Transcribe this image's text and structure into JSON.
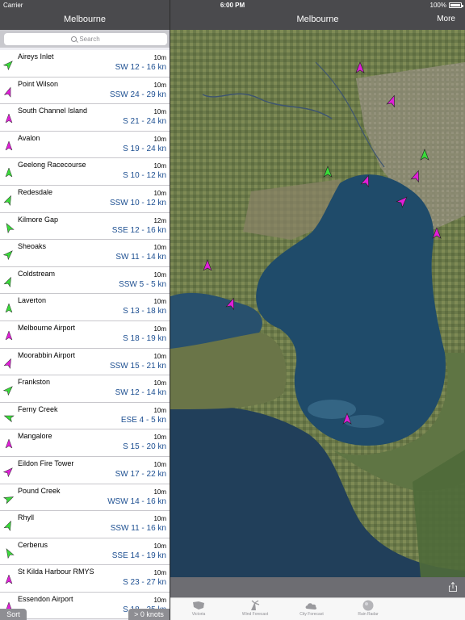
{
  "status": {
    "carrier": "Carrier",
    "time": "6:00 PM",
    "battery": "100%"
  },
  "left": {
    "title": "Melbourne",
    "search_placeholder": "Search",
    "stations": [
      {
        "name": "Aireys Inlet",
        "height": "10m",
        "wind": "SW 12 - 16 kn",
        "color": "green",
        "rot": 225
      },
      {
        "name": "Point Wilson",
        "height": "10m",
        "wind": "SSW 24 - 29 kn",
        "color": "magenta",
        "rot": 200
      },
      {
        "name": "South Channel Island",
        "height": "10m",
        "wind": "S 21 - 24 kn",
        "color": "magenta",
        "rot": 180
      },
      {
        "name": "Avalon",
        "height": "10m",
        "wind": "S 19 - 24 kn",
        "color": "magenta",
        "rot": 180
      },
      {
        "name": "Geelong Racecourse",
        "height": "10m",
        "wind": "S 10 - 12 kn",
        "color": "green",
        "rot": 180
      },
      {
        "name": "Redesdale",
        "height": "10m",
        "wind": "SSW 10 - 12 kn",
        "color": "green",
        "rot": 205
      },
      {
        "name": "Kilmore Gap",
        "height": "12m",
        "wind": "SSE 12 - 16 kn",
        "color": "green",
        "rot": 150
      },
      {
        "name": "Sheoaks",
        "height": "10m",
        "wind": "SW 11 - 14 kn",
        "color": "green",
        "rot": 225
      },
      {
        "name": "Coldstream",
        "height": "10m",
        "wind": "SSW 5 - 5 kn",
        "color": "green",
        "rot": 205
      },
      {
        "name": "Laverton",
        "height": "10m",
        "wind": "S 13 - 18 kn",
        "color": "green",
        "rot": 180
      },
      {
        "name": "Melbourne Airport",
        "height": "10m",
        "wind": "S 18 - 19 kn",
        "color": "magenta",
        "rot": 180
      },
      {
        "name": "Moorabbin Airport",
        "height": "10m",
        "wind": "SSW 15 - 21 kn",
        "color": "magenta",
        "rot": 205
      },
      {
        "name": "Frankston",
        "height": "10m",
        "wind": "SW 12 - 14 kn",
        "color": "green",
        "rot": 225
      },
      {
        "name": "Ferny Creek",
        "height": "10m",
        "wind": "ESE 4 - 5 kn",
        "color": "green",
        "rot": 110
      },
      {
        "name": "Mangalore",
        "height": "10m",
        "wind": "S 15 - 20 kn",
        "color": "magenta",
        "rot": 180
      },
      {
        "name": "Eildon Fire Tower",
        "height": "10m",
        "wind": "SW 17 - 22 kn",
        "color": "magenta",
        "rot": 225
      },
      {
        "name": "Pound Creek",
        "height": "10m",
        "wind": "WSW 14 - 16 kn",
        "color": "green",
        "rot": 245
      },
      {
        "name": "Rhyll",
        "height": "10m",
        "wind": "SSW 11 - 16 kn",
        "color": "green",
        "rot": 205
      },
      {
        "name": "Cerberus",
        "height": "10m",
        "wind": "SSE 14 - 19 kn",
        "color": "green",
        "rot": 150
      },
      {
        "name": "St Kilda Harbour RMYS",
        "height": "10m",
        "wind": "S 23 - 27 kn",
        "color": "magenta",
        "rot": 180
      },
      {
        "name": "Essendon Airport",
        "height": "10m",
        "wind": "S 18 - 25 kn",
        "color": "magenta",
        "rot": 180
      }
    ],
    "sort_label": "Sort",
    "knots_label": "> 0 knots"
  },
  "right": {
    "title": "Melbourne",
    "more_label": "More",
    "tabs": [
      {
        "label": "Victoria",
        "icon": "victoria-map-icon"
      },
      {
        "label": "Wind Forecast",
        "icon": "wind-forecast-icon"
      },
      {
        "label": "City Forecast",
        "icon": "city-forecast-icon"
      },
      {
        "label": "Rain Radar",
        "icon": "rain-radar-icon"
      }
    ]
  },
  "colors": {
    "green": "#3adb3a",
    "magenta": "#e01fd8",
    "wind_text": "#1d4f91",
    "nav": "#4a4a4d"
  }
}
